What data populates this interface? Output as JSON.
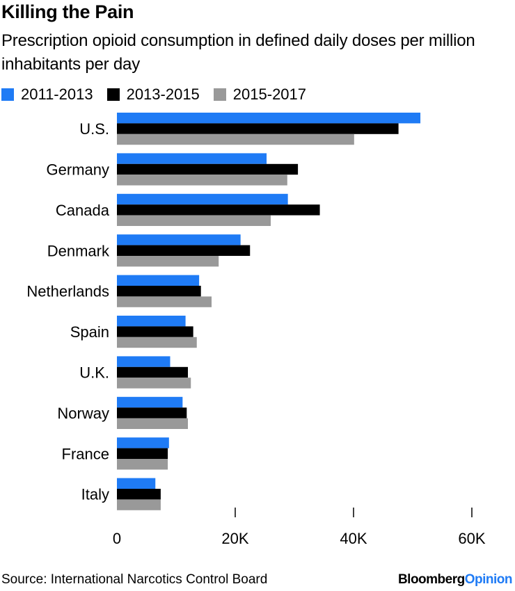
{
  "chart_data": {
    "type": "bar",
    "orientation": "horizontal",
    "title": "Killing the Pain",
    "subtitle": "Prescription opioid consumption in defined daily doses per million inhabitants per day",
    "categories": [
      "U.S.",
      "Germany",
      "Canada",
      "Denmark",
      "Netherlands",
      "Spain",
      "U.K.",
      "Norway",
      "France",
      "Italy"
    ],
    "series": [
      {
        "name": "2011-2013",
        "color": "#1f7bf5",
        "values": [
          51300,
          25300,
          28900,
          20900,
          13900,
          11600,
          9000,
          11100,
          8800,
          6500
        ]
      },
      {
        "name": "2013-2015",
        "color": "#000000",
        "values": [
          47600,
          30600,
          34300,
          22500,
          14200,
          12900,
          12000,
          11800,
          8600,
          7400
        ]
      },
      {
        "name": "2015-2017",
        "color": "#999999",
        "values": [
          40100,
          28800,
          26000,
          17200,
          16000,
          13500,
          12500,
          12000,
          8600,
          7400
        ]
      }
    ],
    "xlim": [
      0,
      60000
    ],
    "x_ticks": [
      0,
      20000,
      40000,
      60000
    ],
    "x_tick_labels": [
      "0",
      "20K",
      "40K",
      "60K"
    ],
    "legend_position": "top-left",
    "grid": false
  },
  "footer": {
    "source": "Source: International Narcotics Control Board",
    "logo_part1": "Bloomberg",
    "logo_part2": "Opinion"
  }
}
